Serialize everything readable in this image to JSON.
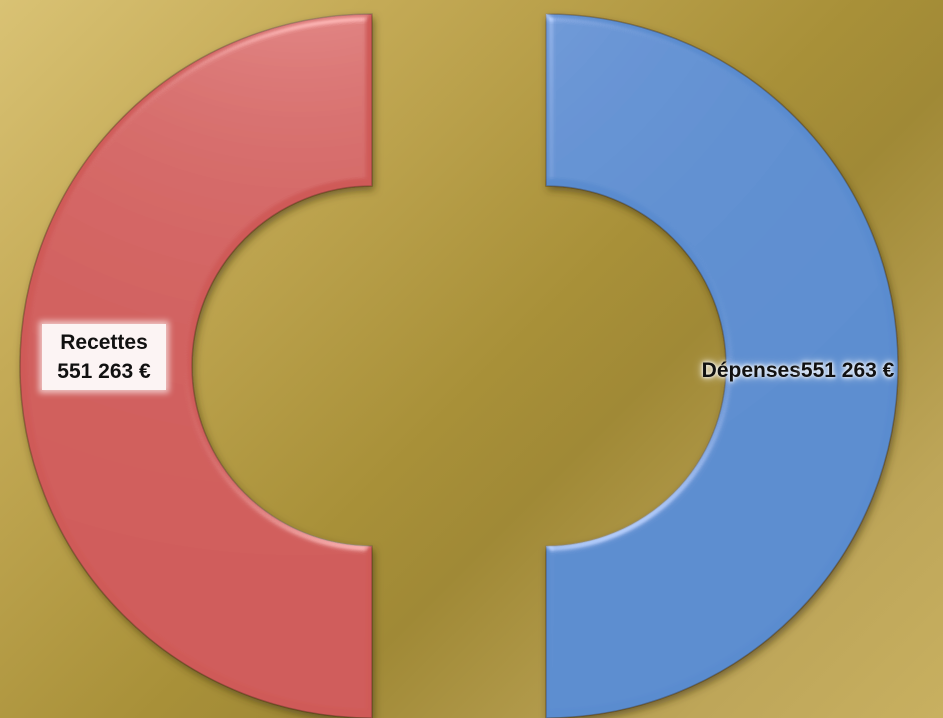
{
  "chart_data": {
    "type": "pie",
    "series": [
      {
        "categories": [
          "Recettes",
          "Dépenses"
        ],
        "values": [
          551263,
          551263
        ],
        "labels": [
          {
            "name": "Recettes",
            "value": "551 263 €"
          },
          {
            "name": "Dépenses",
            "value": "551 263 €"
          }
        ],
        "colors": [
          "#cf5a58",
          "#5a8ccf"
        ]
      }
    ],
    "title": "",
    "legend": "none",
    "style": "exploded half-donut rings"
  }
}
